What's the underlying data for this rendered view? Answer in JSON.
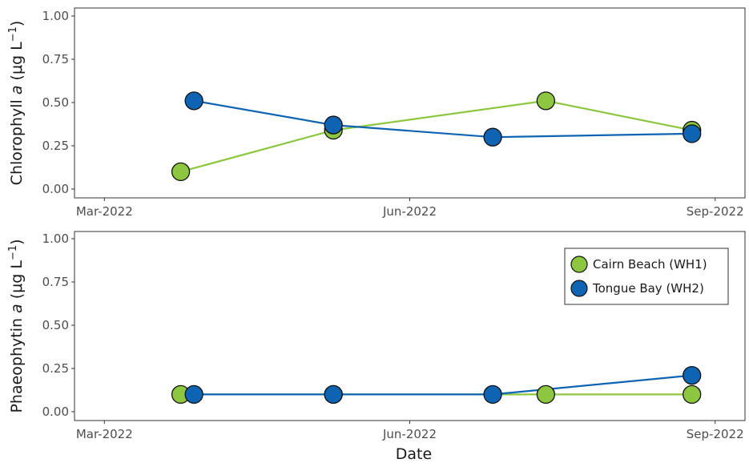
{
  "chart_data": [
    {
      "type": "line",
      "ylabel_parts": [
        "Chlorophyll ",
        "a",
        " (μg L",
        "−1",
        ")"
      ],
      "xlabel": "",
      "xlim": [
        "2022-02-20",
        "2022-09-10"
      ],
      "ylim": [
        0,
        1.0
      ],
      "x_tick_values": [
        "2022-03-01",
        "2022-06-01",
        "2022-09-01"
      ],
      "x_tick_labels": [
        "Mar-2022",
        "Jun-2022",
        "Sep-2022"
      ],
      "y_tick_values": [
        0,
        0.25,
        0.5,
        0.75,
        1.0
      ],
      "y_tick_labels": [
        "0.00",
        "0.25",
        "0.50",
        "0.75",
        "1.00"
      ],
      "grid": false,
      "series": [
        {
          "name": "Cairn Beach (WH1)",
          "color": "#8dc63f",
          "points": [
            {
              "x": "2022-03-24",
              "y": 0.1
            },
            {
              "x": "2022-05-09",
              "y": 0.34
            },
            {
              "x": "2022-07-12",
              "y": 0.51
            },
            {
              "x": "2022-08-25",
              "y": 0.34
            }
          ]
        },
        {
          "name": "Tongue Bay (WH2)",
          "color": "#0e64b3",
          "points": [
            {
              "x": "2022-03-28",
              "y": 0.51
            },
            {
              "x": "2022-05-09",
              "y": 0.37
            },
            {
              "x": "2022-06-26",
              "y": 0.3
            },
            {
              "x": "2022-08-25",
              "y": 0.32
            }
          ]
        }
      ]
    },
    {
      "type": "line",
      "ylabel_parts": [
        "Phaeophytin ",
        "a",
        " (μg L",
        "−1",
        ")"
      ],
      "xlabel": "Date",
      "xlim": [
        "2022-02-20",
        "2022-09-10"
      ],
      "ylim": [
        0,
        1.0
      ],
      "x_tick_values": [
        "2022-03-01",
        "2022-06-01",
        "2022-09-01"
      ],
      "x_tick_labels": [
        "Mar-2022",
        "Jun-2022",
        "Sep-2022"
      ],
      "y_tick_values": [
        0,
        0.25,
        0.5,
        0.75,
        1.0
      ],
      "y_tick_labels": [
        "0.00",
        "0.25",
        "0.50",
        "0.75",
        "1.00"
      ],
      "grid": false,
      "legend": "top-right",
      "series": [
        {
          "name": "Cairn Beach (WH1)",
          "color": "#8dc63f",
          "points": [
            {
              "x": "2022-03-24",
              "y": 0.1
            },
            {
              "x": "2022-05-09",
              "y": 0.1
            },
            {
              "x": "2022-07-12",
              "y": 0.1
            },
            {
              "x": "2022-08-25",
              "y": 0.1
            }
          ]
        },
        {
          "name": "Tongue Bay (WH2)",
          "color": "#0e64b3",
          "points": [
            {
              "x": "2022-03-28",
              "y": 0.1
            },
            {
              "x": "2022-05-09",
              "y": 0.1
            },
            {
              "x": "2022-06-26",
              "y": 0.1
            },
            {
              "x": "2022-08-25",
              "y": 0.21
            }
          ]
        }
      ]
    }
  ]
}
